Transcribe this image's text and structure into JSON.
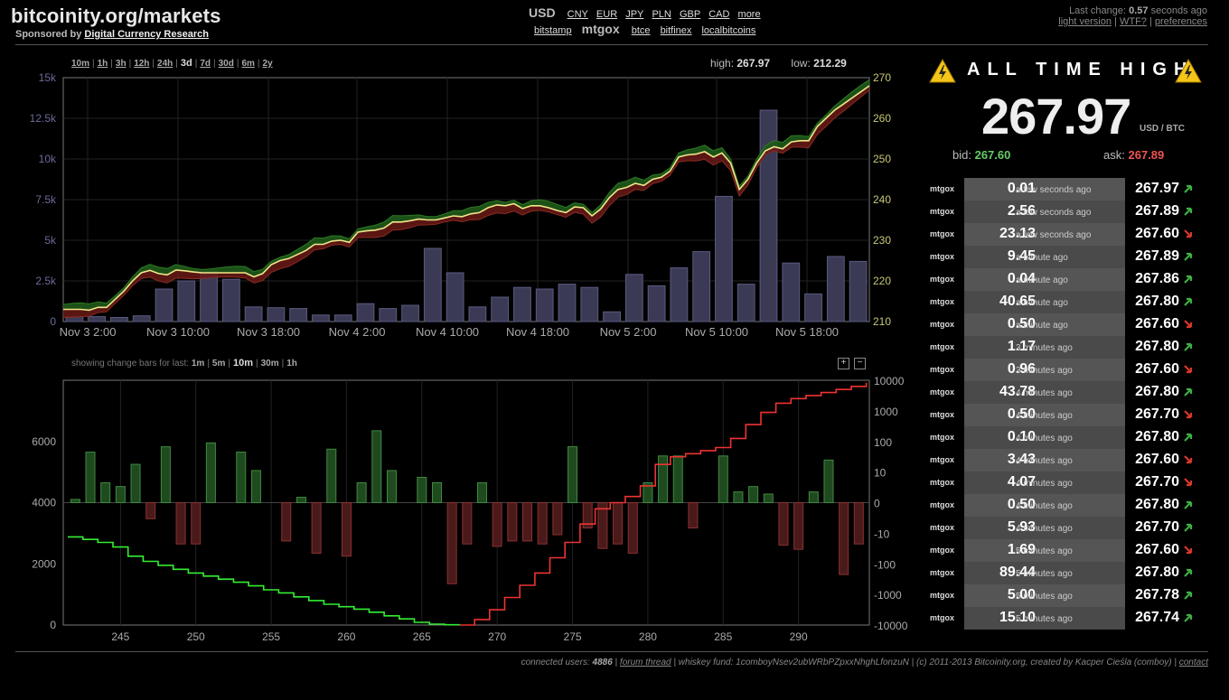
{
  "header": {
    "site_title": "bitcoinity.org/markets",
    "sponsor_prefix": "Sponsored by",
    "sponsor_link": "Digital Currency Research",
    "currency_active": "USD",
    "currencies": [
      "CNY",
      "EUR",
      "JPY",
      "PLN",
      "GBP",
      "CAD",
      "more"
    ],
    "exchanges_left": [
      "bitstamp"
    ],
    "exchange_active": "mtgox",
    "exchanges_right": [
      "btce",
      "bitfinex",
      "localbitcoins"
    ],
    "last_change_prefix": "Last change:",
    "last_change_value": "0.57",
    "last_change_suffix": "seconds ago",
    "links": [
      "light version",
      "WTF?",
      "preferences"
    ]
  },
  "range": {
    "options": [
      "10m",
      "1h",
      "3h",
      "12h",
      "24h",
      "3d",
      "7d",
      "30d",
      "6m",
      "2y"
    ],
    "selected": "3d",
    "high_label": "high:",
    "high_value": "267.97",
    "low_label": "low:",
    "low_value": "212.29"
  },
  "change_bars": {
    "label": "showing change bars for last:",
    "options": [
      "1m",
      "5m",
      "10m",
      "30m",
      "1h"
    ],
    "selected": "10m",
    "zoom_in": "+",
    "zoom_out": "−"
  },
  "ath": {
    "title": "ALL TIME HIGH",
    "price": "267.97",
    "unit": "USD / BTC",
    "bid_label": "bid:",
    "bid_value": "267.60",
    "ask_label": "ask:",
    "ask_value": "267.89"
  },
  "trades": [
    {
      "exchange": "mtgox",
      "amount": "0.01",
      "ago": "a few seconds ago",
      "price": "267.97",
      "dir": "up"
    },
    {
      "exchange": "mtgox",
      "amount": "2.56",
      "ago": "a few seconds ago",
      "price": "267.89",
      "dir": "up"
    },
    {
      "exchange": "mtgox",
      "amount": "23.13",
      "ago": "a few seconds ago",
      "price": "267.60",
      "dir": "down"
    },
    {
      "exchange": "mtgox",
      "amount": "9.45",
      "ago": "a minute ago",
      "price": "267.89",
      "dir": "up"
    },
    {
      "exchange": "mtgox",
      "amount": "0.04",
      "ago": "a minute ago",
      "price": "267.86",
      "dir": "up"
    },
    {
      "exchange": "mtgox",
      "amount": "40.65",
      "ago": "a minute ago",
      "price": "267.80",
      "dir": "up"
    },
    {
      "exchange": "mtgox",
      "amount": "0.50",
      "ago": "a minute ago",
      "price": "267.60",
      "dir": "down"
    },
    {
      "exchange": "mtgox",
      "amount": "1.17",
      "ago": "3 minutes ago",
      "price": "267.80",
      "dir": "up"
    },
    {
      "exchange": "mtgox",
      "amount": "0.96",
      "ago": "3 minutes ago",
      "price": "267.60",
      "dir": "down"
    },
    {
      "exchange": "mtgox",
      "amount": "43.78",
      "ago": "4 minutes ago",
      "price": "267.80",
      "dir": "up"
    },
    {
      "exchange": "mtgox",
      "amount": "0.50",
      "ago": "4 minutes ago",
      "price": "267.70",
      "dir": "down"
    },
    {
      "exchange": "mtgox",
      "amount": "0.10",
      "ago": "4 minutes ago",
      "price": "267.80",
      "dir": "up"
    },
    {
      "exchange": "mtgox",
      "amount": "3.43",
      "ago": "4 minutes ago",
      "price": "267.60",
      "dir": "down"
    },
    {
      "exchange": "mtgox",
      "amount": "4.07",
      "ago": "4 minutes ago",
      "price": "267.70",
      "dir": "down"
    },
    {
      "exchange": "mtgox",
      "amount": "0.50",
      "ago": "4 minutes ago",
      "price": "267.80",
      "dir": "up"
    },
    {
      "exchange": "mtgox",
      "amount": "5.93",
      "ago": "4 minutes ago",
      "price": "267.70",
      "dir": "up"
    },
    {
      "exchange": "mtgox",
      "amount": "1.69",
      "ago": "5 minutes ago",
      "price": "267.60",
      "dir": "down"
    },
    {
      "exchange": "mtgox",
      "amount": "89.44",
      "ago": "5 minutes ago",
      "price": "267.80",
      "dir": "up"
    },
    {
      "exchange": "mtgox",
      "amount": "5.00",
      "ago": "5 minutes ago",
      "price": "267.78",
      "dir": "up"
    },
    {
      "exchange": "mtgox",
      "amount": "15.10",
      "ago": "5 minutes ago",
      "price": "267.74",
      "dir": "up"
    }
  ],
  "footer": {
    "users_label": "connected users:",
    "users_value": "4886",
    "forum_link": "forum thread",
    "rest": "| whiskey fund: 1comboyNsev2ubWRbPZpxxNhghLfonzuN | (c) 2011-2013 Bitcoinity.org, created by Kacper Cieśla (comboy) |",
    "contact_link": "contact"
  },
  "colors": {
    "up": "#3cb043",
    "down": "#d9372c",
    "price_line": "#f0e68c",
    "volume": "#3a3a55"
  },
  "chart_data": [
    {
      "type": "line",
      "x_tick_labels": [
        "Nov 3 2:00",
        "Nov 3 10:00",
        "Nov 3 18:00",
        "Nov 4 2:00",
        "Nov 4 10:00",
        "Nov 4 18:00",
        "Nov 5 2:00",
        "Nov 5 10:00",
        "Nov 5 18:00"
      ],
      "y_left_ticks": [
        "0",
        "2.5k",
        "5k",
        "7.5k",
        "10k",
        "12.5k",
        "15k"
      ],
      "y_right_ticks": [
        "210",
        "220",
        "230",
        "240",
        "250",
        "260",
        "270"
      ],
      "ylim_volume": [
        0,
        15000
      ],
      "ylim_price": [
        210,
        270
      ],
      "grid": true,
      "volume": [
        300,
        300,
        250,
        350,
        2000,
        2500,
        3100,
        2600,
        900,
        850,
        800,
        400,
        400,
        1100,
        800,
        1000,
        4500,
        3000,
        900,
        1500,
        2100,
        2000,
        2300,
        2100,
        600,
        2900,
        2200,
        3300,
        4300,
        7700,
        2300,
        13000,
        3600,
        1700,
        4000,
        3700
      ],
      "price": [
        213,
        213,
        213,
        212.8,
        213.5,
        213.5,
        215.5,
        217.5,
        220,
        222,
        222.6,
        221.8,
        221.5,
        222.7,
        222.5,
        222.2,
        222,
        222,
        222,
        222,
        222,
        222,
        221,
        221.8,
        224,
        225,
        225.5,
        226.5,
        227.5,
        229,
        229,
        229.8,
        230,
        229.5,
        232,
        232.3,
        232.5,
        233,
        234.5,
        234.5,
        234.8,
        235.2,
        235,
        235,
        235.5,
        236,
        235.8,
        236.5,
        236.8,
        238,
        238.7,
        238.5,
        239,
        237.8,
        238.5,
        238.5,
        238,
        237.3,
        236.8,
        238.2,
        238,
        236,
        237.7,
        240.5,
        242.5,
        243,
        244,
        243.5,
        245,
        245.5,
        247,
        250.5,
        251,
        251.2,
        251.8,
        250.5,
        251.5,
        249,
        242.5,
        245,
        249,
        252,
        253,
        252.5,
        254.2,
        254.5,
        254.5,
        258,
        260,
        262,
        263.5,
        265,
        266.5,
        268
      ]
    },
    {
      "type": "bar",
      "x_ticks": [
        "245",
        "250",
        "255",
        "260",
        "265",
        "270",
        "275",
        "280",
        "285",
        "290"
      ],
      "y_left_ticks": [
        "0",
        "2000",
        "4000",
        "6000"
      ],
      "y_right_ticks": [
        "10000",
        "1000",
        "100",
        "10",
        "0",
        "-10",
        "-100",
        "-1000",
        "-10000"
      ],
      "ylim_left": [
        0,
        8000
      ],
      "bar_x": [
        242,
        243,
        244,
        245,
        246,
        247,
        248,
        249,
        250,
        251,
        253,
        254,
        256,
        257,
        258,
        259,
        260,
        261,
        262,
        263,
        265,
        266,
        267,
        268,
        269,
        270,
        271,
        272,
        273,
        274,
        275,
        276,
        277,
        278,
        279,
        280,
        281,
        282,
        283,
        285,
        286,
        287,
        288,
        289,
        290,
        291,
        292,
        293,
        294
      ],
      "bar_v": [
        0.3,
        20,
        2,
        1.5,
        8,
        -1.5,
        30,
        -10,
        -10,
        40,
        20,
        5,
        -8,
        0.5,
        -20,
        25,
        -25,
        2,
        100,
        5,
        3,
        2,
        -200,
        -10,
        2,
        -12,
        -8,
        -8,
        -10,
        -5,
        30,
        -3,
        -14,
        -10,
        -20,
        2,
        15,
        15,
        -3,
        15,
        1,
        1.5,
        0.8,
        -11,
        -15,
        1,
        11,
        -100,
        -10
      ],
      "sell_walls": [
        [
          241.5,
          2880
        ],
        [
          242.5,
          2800
        ],
        [
          243.5,
          2700
        ],
        [
          244.5,
          2550
        ],
        [
          245.5,
          2250
        ],
        [
          246.5,
          2080
        ],
        [
          247.5,
          1950
        ],
        [
          248.5,
          1820
        ],
        [
          249.5,
          1700
        ],
        [
          250.5,
          1600
        ],
        [
          251.5,
          1500
        ],
        [
          252.5,
          1400
        ],
        [
          253.5,
          1280
        ],
        [
          254.5,
          1150
        ],
        [
          255.5,
          1050
        ],
        [
          256.5,
          920
        ],
        [
          257.5,
          800
        ],
        [
          258.5,
          680
        ],
        [
          259.5,
          600
        ],
        [
          260.5,
          520
        ],
        [
          261.5,
          420
        ],
        [
          262.5,
          300
        ],
        [
          263.5,
          200
        ],
        [
          264.5,
          90
        ],
        [
          265.5,
          30
        ],
        [
          266.5,
          10
        ],
        [
          267.5,
          0
        ]
      ],
      "buy_walls": [
        [
          267.5,
          0
        ],
        [
          268.5,
          180
        ],
        [
          269.5,
          500
        ],
        [
          270.5,
          900
        ],
        [
          271.5,
          1300
        ],
        [
          272.5,
          1700
        ],
        [
          273.5,
          2200
        ],
        [
          274.5,
          2700
        ],
        [
          275.5,
          3300
        ],
        [
          276.5,
          3800
        ],
        [
          277.5,
          4000
        ],
        [
          278.5,
          4200
        ],
        [
          279.5,
          4550
        ],
        [
          280.5,
          5250
        ],
        [
          281.5,
          5500
        ],
        [
          282.5,
          5600
        ],
        [
          283.5,
          5700
        ],
        [
          284.5,
          5800
        ],
        [
          285.5,
          6100
        ],
        [
          286.5,
          6550
        ],
        [
          287.5,
          6950
        ],
        [
          288.5,
          7250
        ],
        [
          289.5,
          7400
        ],
        [
          290.5,
          7500
        ],
        [
          291.5,
          7600
        ],
        [
          292.5,
          7700
        ],
        [
          293.5,
          7800
        ],
        [
          294.5,
          7920
        ]
      ]
    }
  ]
}
